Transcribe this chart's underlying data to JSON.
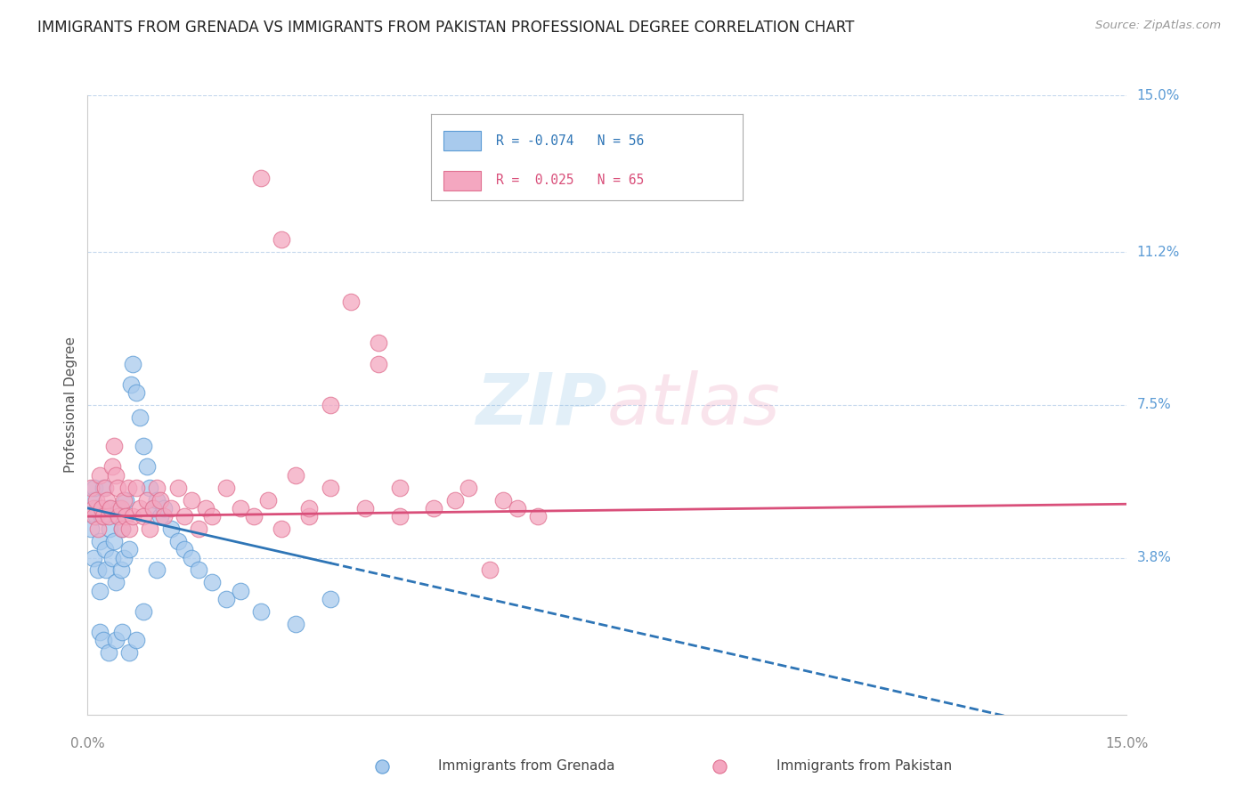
{
  "title": "IMMIGRANTS FROM GRENADA VS IMMIGRANTS FROM PAKISTAN PROFESSIONAL DEGREE CORRELATION CHART",
  "source": "Source: ZipAtlas.com",
  "ylabel": "Professional Degree",
  "legend_label1": "Immigrants from Grenada",
  "legend_label2": "Immigrants from Pakistan",
  "R1": -0.074,
  "N1": 56,
  "R2": 0.025,
  "N2": 65,
  "color1": "#a8caed",
  "color1_edge": "#5b9bd5",
  "color2": "#f4a7c0",
  "color2_edge": "#e07090",
  "line1_color": "#2e75b6",
  "line2_color": "#d94f7a",
  "xmin": 0.0,
  "xmax": 15.0,
  "ymin": 0.0,
  "ymax": 15.0,
  "ytick_vals": [
    3.8,
    7.5,
    11.2,
    15.0
  ],
  "ytick_labels": [
    "3.8%",
    "7.5%",
    "11.2%",
    "15.0%"
  ],
  "grid_color": "#c5d8ed",
  "background_color": "#ffffff",
  "s1_solid_end": 3.5,
  "s1_intercept": 5.0,
  "s1_slope": -0.38,
  "s2_intercept": 4.8,
  "s2_slope": 0.02,
  "scatter1_x": [
    0.05,
    0.07,
    0.08,
    0.1,
    0.12,
    0.14,
    0.15,
    0.17,
    0.18,
    0.2,
    0.22,
    0.25,
    0.27,
    0.3,
    0.32,
    0.35,
    0.38,
    0.4,
    0.43,
    0.45,
    0.48,
    0.5,
    0.52,
    0.55,
    0.6,
    0.62,
    0.65,
    0.7,
    0.75,
    0.8,
    0.85,
    0.9,
    0.95,
    1.0,
    1.05,
    1.1,
    1.2,
    1.3,
    1.4,
    1.5,
    1.6,
    1.8,
    2.0,
    2.2,
    2.5,
    3.0,
    3.5,
    0.18,
    0.22,
    0.3,
    0.4,
    0.5,
    0.6,
    0.7,
    0.8,
    1.0
  ],
  "scatter1_y": [
    4.5,
    5.2,
    3.8,
    5.5,
    4.8,
    5.0,
    3.5,
    4.2,
    3.0,
    4.8,
    5.5,
    4.0,
    3.5,
    5.0,
    4.5,
    3.8,
    4.2,
    3.2,
    4.8,
    5.0,
    3.5,
    4.5,
    3.8,
    5.2,
    4.0,
    8.0,
    8.5,
    7.8,
    7.2,
    6.5,
    6.0,
    5.5,
    5.0,
    5.2,
    4.8,
    5.0,
    4.5,
    4.2,
    4.0,
    3.8,
    3.5,
    3.2,
    2.8,
    3.0,
    2.5,
    2.2,
    2.8,
    2.0,
    1.8,
    1.5,
    1.8,
    2.0,
    1.5,
    1.8,
    2.5,
    3.5
  ],
  "scatter2_x": [
    0.05,
    0.08,
    0.1,
    0.12,
    0.15,
    0.18,
    0.2,
    0.22,
    0.25,
    0.28,
    0.3,
    0.33,
    0.35,
    0.38,
    0.4,
    0.43,
    0.45,
    0.48,
    0.5,
    0.52,
    0.55,
    0.58,
    0.6,
    0.65,
    0.7,
    0.75,
    0.8,
    0.85,
    0.9,
    0.95,
    1.0,
    1.05,
    1.1,
    1.2,
    1.3,
    1.4,
    1.5,
    1.6,
    1.7,
    1.8,
    2.0,
    2.2,
    2.4,
    2.6,
    2.8,
    3.0,
    3.2,
    3.5,
    4.0,
    4.5,
    5.0,
    5.5,
    6.0,
    6.5,
    3.2,
    4.5,
    5.3,
    6.2,
    4.2,
    3.8,
    2.5,
    2.8,
    3.5,
    4.2,
    5.8
  ],
  "scatter2_y": [
    5.5,
    5.0,
    4.8,
    5.2,
    4.5,
    5.8,
    5.0,
    4.8,
    5.5,
    5.2,
    4.8,
    5.0,
    6.0,
    6.5,
    5.8,
    5.5,
    4.8,
    5.0,
    4.5,
    5.2,
    4.8,
    5.5,
    4.5,
    4.8,
    5.5,
    5.0,
    4.8,
    5.2,
    4.5,
    5.0,
    5.5,
    5.2,
    4.8,
    5.0,
    5.5,
    4.8,
    5.2,
    4.5,
    5.0,
    4.8,
    5.5,
    5.0,
    4.8,
    5.2,
    4.5,
    5.8,
    4.8,
    5.5,
    5.0,
    5.5,
    5.0,
    5.5,
    5.2,
    4.8,
    5.0,
    4.8,
    5.2,
    5.0,
    8.5,
    10.0,
    13.0,
    11.5,
    7.5,
    9.0,
    3.5
  ]
}
